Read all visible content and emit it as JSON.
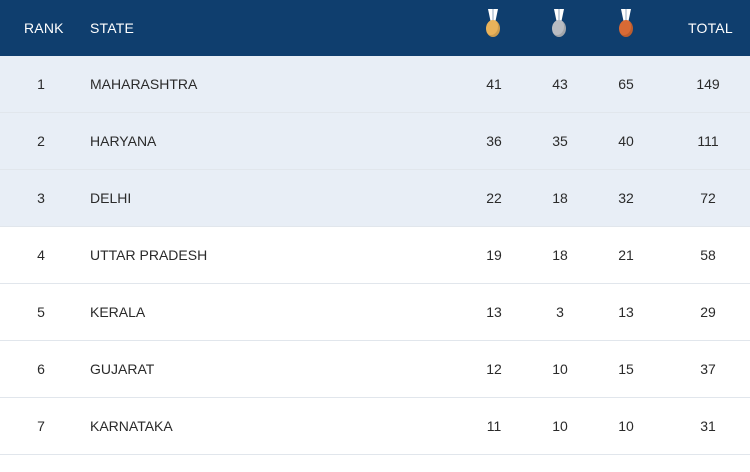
{
  "header": {
    "rank": "RANK",
    "state": "STATE",
    "total": "TOTAL",
    "medal_icons": [
      "gold-medal-icon",
      "silver-medal-icon",
      "bronze-medal-icon"
    ]
  },
  "colors": {
    "header_bg": "#0f3e6e",
    "highlight_row_bg": "#e8eef6",
    "gold": "#e9b25a",
    "silver": "#b9bcc2",
    "bronze": "#d86a35"
  },
  "rows": [
    {
      "rank": "1",
      "state": "MAHARASHTRA",
      "gold": "41",
      "silver": "43",
      "bronze": "65",
      "total": "149",
      "highlighted": true
    },
    {
      "rank": "2",
      "state": "HARYANA",
      "gold": "36",
      "silver": "35",
      "bronze": "40",
      "total": "111",
      "highlighted": true
    },
    {
      "rank": "3",
      "state": "DELHI",
      "gold": "22",
      "silver": "18",
      "bronze": "32",
      "total": "72",
      "highlighted": true
    },
    {
      "rank": "4",
      "state": "UTTAR PRADESH",
      "gold": "19",
      "silver": "18",
      "bronze": "21",
      "total": "58",
      "highlighted": false
    },
    {
      "rank": "5",
      "state": "KERALA",
      "gold": "13",
      "silver": "3",
      "bronze": "13",
      "total": "29",
      "highlighted": false
    },
    {
      "rank": "6",
      "state": "GUJARAT",
      "gold": "12",
      "silver": "10",
      "bronze": "15",
      "total": "37",
      "highlighted": false
    },
    {
      "rank": "7",
      "state": "KARNATAKA",
      "gold": "11",
      "silver": "10",
      "bronze": "10",
      "total": "31",
      "highlighted": false
    }
  ]
}
